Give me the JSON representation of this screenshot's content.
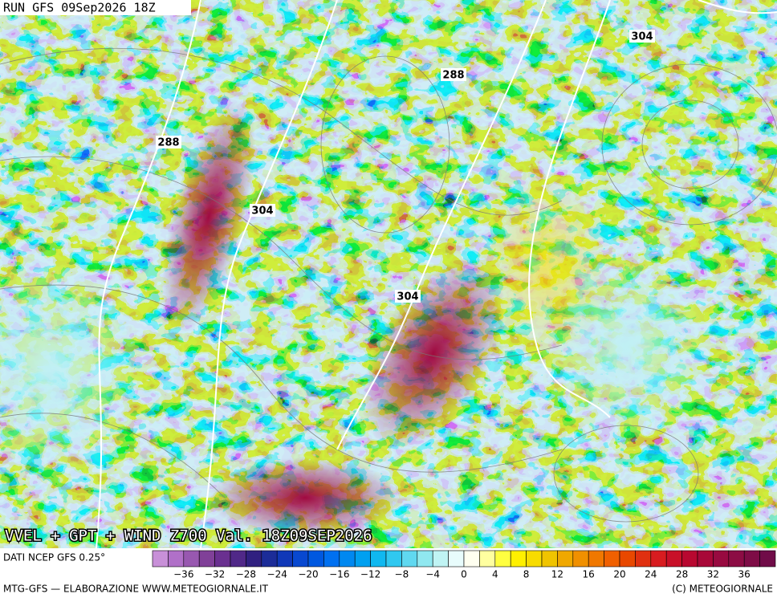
{
  "header": {
    "run": "RUN GFS 09Sep2026 18Z"
  },
  "map": {
    "contour_labels": [
      "304",
      "288",
      "288",
      "304",
      "304"
    ]
  },
  "title": "VVEL + GPT + WIND Z700 Val. 18Z09SEP2026",
  "legend": {
    "source": "DATI NCEP GFS 0.25°",
    "ticks": [
      "−36",
      "−32",
      "−28",
      "−24",
      "−20",
      "−16",
      "−12",
      "−8",
      "−4",
      "0",
      "4",
      "8",
      "12",
      "16",
      "20",
      "24",
      "28",
      "32",
      "36"
    ],
    "colors": [
      "#c890d8",
      "#b070c8",
      "#9858b0",
      "#804098",
      "#6a3090",
      "#502888",
      "#302080",
      "#1c2c98",
      "#1038b8",
      "#0848d0",
      "#0058e0",
      "#0070f0",
      "#0088f0",
      "#00a0f0",
      "#10b8f0",
      "#30c8f0",
      "#60d8f0",
      "#90e8f0",
      "#c0f4f4",
      "#e8fcfc",
      "#fffff0",
      "#ffffa0",
      "#ffff40",
      "#fff000",
      "#f8dc00",
      "#f0c400",
      "#f0a800",
      "#f09000",
      "#f07800",
      "#f06000",
      "#e84800",
      "#e03010",
      "#d81c20",
      "#c81028",
      "#b80830",
      "#a80838",
      "#980a40",
      "#8c0c44",
      "#7e0c46",
      "#700c48"
    ]
  },
  "footer": {
    "left": "MTG-GFS — ELABORAZIONE WWW.METEOGIORNALE.IT",
    "right": "(C) METEOGIORNALE"
  }
}
